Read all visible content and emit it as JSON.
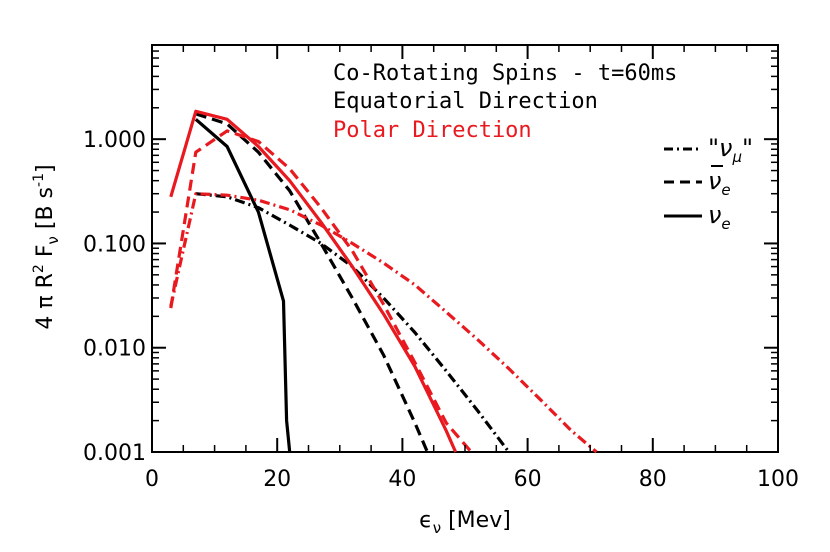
{
  "chart_data": {
    "type": "line",
    "title": "",
    "xlabel": "ϵ_ν [Mev]",
    "xlabel_main": "ϵ",
    "xlabel_sub": "ν",
    "xlabel_unit": " [Mev]",
    "ylabel": "4 π R² Fν [B s⁻¹]",
    "ylabel_parts": {
      "pre": "4 π R",
      "sup1": "2",
      "mid": " F",
      "sub": "ν",
      "unit": " [B s",
      "sup2": "-1",
      "close": "]"
    },
    "x_ticks": [
      0,
      20,
      40,
      60,
      80,
      100
    ],
    "x_tick_labels": [
      "0",
      "20",
      "40",
      "60",
      "80",
      "100"
    ],
    "y_ticks": [
      0.001,
      0.01,
      0.1,
      1.0
    ],
    "y_tick_labels": [
      "0.001",
      "0.010",
      "0.100",
      "1.000"
    ],
    "xlim": [
      0,
      100
    ],
    "ylim": [
      0.001,
      8
    ],
    "yscale": "log",
    "annotations": [
      {
        "text": "Co-Rotating Spins - t=60ms",
        "color": "#000000"
      },
      {
        "text": "Equatorial Direction",
        "color": "#000000"
      },
      {
        "text": "Polar Direction",
        "color": "#e8191f"
      }
    ],
    "legend": {
      "placement": "right",
      "entries": [
        {
          "label": "\"νμ\"",
          "base": "ν",
          "sub": "μ",
          "quoted": true,
          "bar": false,
          "linestyle": "dashdot"
        },
        {
          "label": "ν̅e",
          "base": "ν",
          "sub": "e",
          "quoted": false,
          "bar": true,
          "linestyle": "dashed"
        },
        {
          "label": "νe",
          "base": "ν",
          "sub": "e",
          "quoted": false,
          "bar": false,
          "linestyle": "solid"
        }
      ]
    },
    "series": [
      {
        "name": "Equatorial νe",
        "direction": "Equatorial",
        "flavor": "nu_e",
        "color": "#000000",
        "linestyle": "solid",
        "x": [
          7,
          12,
          17,
          21,
          21.5,
          22
        ],
        "y": [
          1.55,
          0.85,
          0.2,
          0.028,
          0.002,
          0.001
        ]
      },
      {
        "name": "Equatorial ν̅e",
        "direction": "Equatorial",
        "flavor": "nubar_e",
        "color": "#000000",
        "linestyle": "dashed",
        "x": [
          7,
          12,
          17,
          22,
          27,
          32,
          37,
          42,
          44
        ],
        "y": [
          1.75,
          1.4,
          0.75,
          0.32,
          0.1,
          0.03,
          0.0085,
          0.0019,
          0.001
        ]
      },
      {
        "name": "Equatorial \"νμ\"",
        "direction": "Equatorial",
        "flavor": "nu_mu",
        "color": "#000000",
        "linestyle": "dashdot",
        "x": [
          7,
          12,
          17,
          22,
          27,
          32,
          37,
          42,
          47,
          52,
          57
        ],
        "y": [
          0.3,
          0.28,
          0.22,
          0.15,
          0.1,
          0.06,
          0.03,
          0.014,
          0.006,
          0.0025,
          0.001
        ]
      },
      {
        "name": "Polar νe",
        "direction": "Polar",
        "flavor": "nu_e",
        "color": "#e8191f",
        "linestyle": "solid",
        "x": [
          3,
          7,
          12,
          17,
          22,
          27,
          32,
          37,
          42,
          47,
          48.5
        ],
        "y": [
          0.28,
          1.85,
          1.55,
          0.85,
          0.4,
          0.16,
          0.06,
          0.021,
          0.0066,
          0.0016,
          0.001
        ]
      },
      {
        "name": "Polar ν̅e",
        "direction": "Polar",
        "flavor": "nubar_e",
        "color": "#e8191f",
        "linestyle": "dashed",
        "x": [
          3,
          7,
          12,
          17,
          22,
          27,
          32,
          37,
          42,
          47,
          51
        ],
        "y": [
          0.024,
          0.75,
          1.2,
          0.95,
          0.52,
          0.22,
          0.085,
          0.026,
          0.0072,
          0.0019,
          0.001
        ]
      },
      {
        "name": "Polar \"νμ\"",
        "direction": "Polar",
        "flavor": "nu_mu",
        "color": "#e8191f",
        "linestyle": "dashdot",
        "x": [
          3,
          7,
          12,
          17,
          22,
          27,
          32,
          37,
          42,
          47,
          52,
          57,
          62,
          67,
          71
        ],
        "y": [
          0.025,
          0.3,
          0.29,
          0.26,
          0.21,
          0.15,
          0.1,
          0.065,
          0.04,
          0.022,
          0.012,
          0.0063,
          0.0032,
          0.0016,
          0.001
        ]
      }
    ]
  }
}
